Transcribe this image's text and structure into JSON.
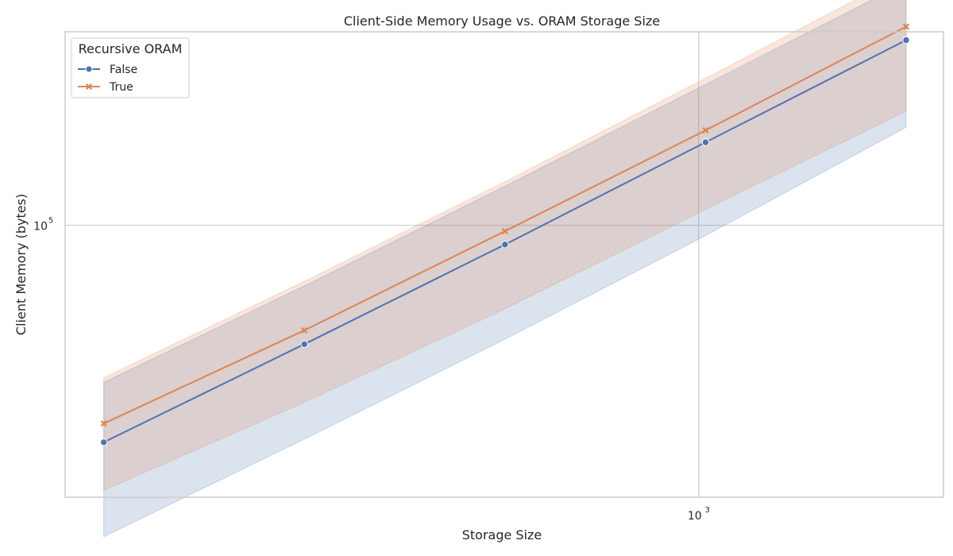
{
  "chart_data": {
    "type": "line",
    "title": "Client-Side Memory Usage vs. ORAM Storage Size",
    "xlabel": "Storage Size",
    "ylabel": "Client Memory (bytes)",
    "xscale": "log",
    "yscale": "log",
    "xlim": [
      112,
      2330
    ],
    "ylim": [
      18300,
      335000
    ],
    "xticks": [
      {
        "value": 1000,
        "base": "10",
        "exp": "3"
      }
    ],
    "yticks": [
      {
        "value": 100000,
        "base": "10",
        "exp": "5"
      }
    ],
    "grid": true,
    "legend": {
      "title": "Recursive ORAM",
      "placement": "top-left"
    },
    "x": [
      128,
      256,
      512,
      1024,
      2048
    ],
    "series": [
      {
        "name": "False",
        "color": "#4c72b0",
        "marker": "circle",
        "values": [
          25800,
          47600,
          88700,
          168000,
          318000
        ],
        "ci_low": [
          14300,
          26300,
          49100,
          93800,
          184500
        ],
        "ci_high": [
          37500,
          68500,
          127700,
          241000,
          456000
        ]
      },
      {
        "name": "True",
        "color": "#dd8452",
        "marker": "x",
        "values": [
          29000,
          51900,
          96400,
          181000,
          346000
        ],
        "ci_low": [
          19100,
          33100,
          59300,
          110500,
          204000
        ],
        "ci_high": [
          38600,
          70500,
          131400,
          250500,
          483000
        ]
      }
    ]
  }
}
